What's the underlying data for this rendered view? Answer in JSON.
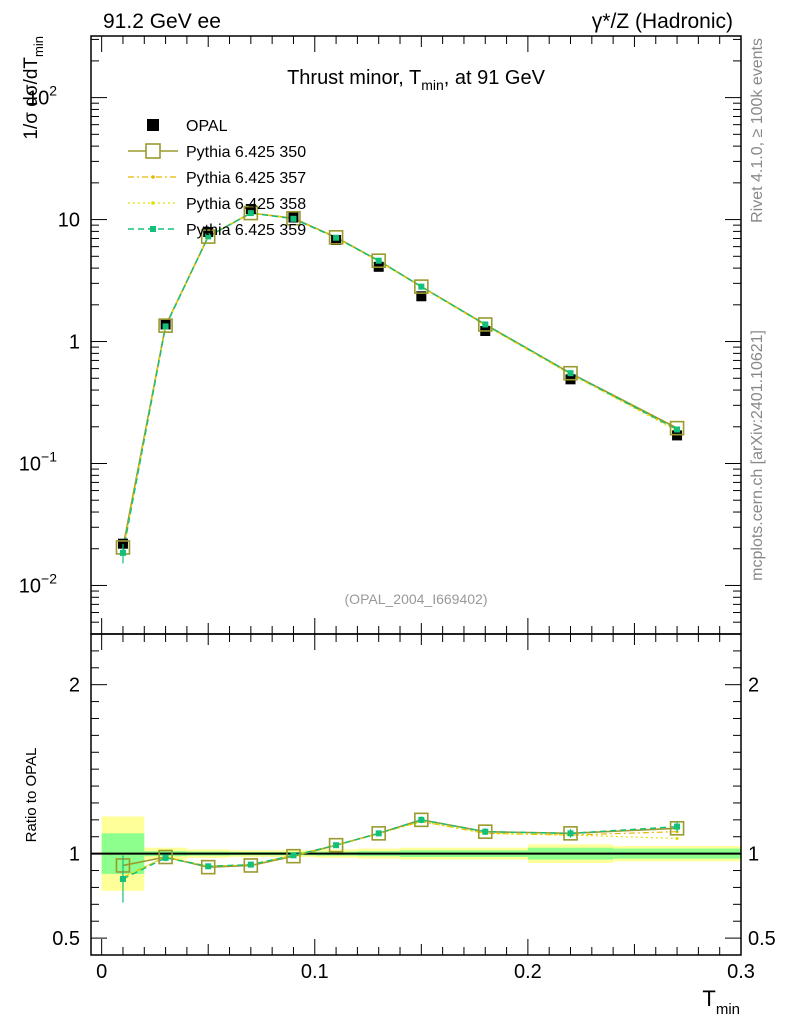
{
  "header": {
    "left": "91.2 GeV ee",
    "right": "γ*/Z (Hadronic)"
  },
  "side": {
    "rivet": "Rivet 4.1.0, ≥ 100k events",
    "mcplots": "mcplots.cern.ch [arXiv:2401.10621]"
  },
  "colors": {
    "opal": "#000000",
    "p350": "#9a9a2e",
    "p357": "#e8b800",
    "p358": "#e0e000",
    "p359": "#13c07a",
    "band_inner": "#8cff8c",
    "band_outer": "#ffff99"
  },
  "chart_data": [
    {
      "type": "scatter",
      "title": "Thrust minor, T",
      "title_sub": "min",
      "title_suffix": ", at 91 GeV",
      "ylabel": "1/σ  dσ/dT",
      "ylabel_sub": "min",
      "yscale": "log",
      "ylim": [
        0.004,
        320
      ],
      "xlim": [
        -0.005,
        0.3
      ],
      "ytick_major": [
        {
          "v": 0.01,
          "base": "10",
          "exp": "−2"
        },
        {
          "v": 0.1,
          "base": "10",
          "exp": "−1"
        },
        {
          "v": 1,
          "base": "1",
          "exp": ""
        },
        {
          "v": 10,
          "base": "10",
          "exp": ""
        },
        {
          "v": 100,
          "base": "10",
          "exp": "2"
        }
      ],
      "watermark": "(OPAL_2004_I669402)",
      "x": [
        0.01,
        0.03,
        0.05,
        0.07,
        0.09,
        0.11,
        0.13,
        0.15,
        0.18,
        0.22,
        0.27
      ],
      "xerr": [
        0.01,
        0.01,
        0.01,
        0.01,
        0.01,
        0.01,
        0.01,
        0.01,
        0.02,
        0.02,
        0.03
      ],
      "series": [
        {
          "name": "OPAL",
          "key": "opal",
          "values": [
            0.022,
            1.38,
            7.9,
            12.2,
            10.4,
            6.8,
            4.1,
            2.35,
            1.22,
            0.49,
            0.17
          ]
        },
        {
          "name": "Pythia 6.425 350",
          "key": "p350",
          "values": [
            0.0205,
            1.35,
            7.25,
            11.3,
            10.25,
            7.15,
            4.6,
            2.82,
            1.38,
            0.55,
            0.195
          ]
        },
        {
          "name": "Pythia 6.425 357",
          "key": "p357",
          "values": [
            0.019,
            1.34,
            7.3,
            11.35,
            10.2,
            7.1,
            4.55,
            2.8,
            1.36,
            0.54,
            0.19
          ]
        },
        {
          "name": "Pythia 6.425 358",
          "key": "p358",
          "values": [
            0.019,
            1.34,
            7.3,
            11.35,
            10.2,
            7.1,
            4.55,
            2.8,
            1.36,
            0.54,
            0.185
          ]
        },
        {
          "name": "Pythia 6.425 359",
          "key": "p359",
          "values": [
            0.0185,
            1.33,
            7.28,
            11.3,
            10.15,
            7.1,
            4.6,
            2.82,
            1.38,
            0.55,
            0.19
          ]
        }
      ]
    },
    {
      "type": "scatter",
      "ylabel": "Ratio to OPAL",
      "xlabel": "T",
      "xlabel_sub": "min",
      "ylim": [
        0.4,
        2.3
      ],
      "xlim": [
        -0.005,
        0.3
      ],
      "xticks": [
        0,
        0.1,
        0.2,
        0.3
      ],
      "xtick_labels": [
        "0",
        "0.1",
        "0.2",
        "0.3"
      ],
      "yticks": [
        0.5,
        1,
        2
      ],
      "ytick_labels": [
        "0.5",
        "1",
        "2"
      ],
      "band_inner": [
        0.12,
        0.015,
        0.012,
        0.01,
        0.01,
        0.012,
        0.015,
        0.02,
        0.02,
        0.035,
        0.03
      ],
      "band_outer": [
        0.22,
        0.035,
        0.025,
        0.02,
        0.02,
        0.025,
        0.03,
        0.035,
        0.035,
        0.055,
        0.045
      ],
      "series": [
        {
          "name": "Pythia 6.425 350",
          "key": "p350",
          "values": [
            0.93,
            0.98,
            0.92,
            0.93,
            0.985,
            1.05,
            1.12,
            1.2,
            1.13,
            1.12,
            1.15
          ]
        },
        {
          "name": "Pythia 6.425 357",
          "key": "p357",
          "values": [
            0.86,
            0.98,
            0.925,
            0.935,
            0.99,
            1.05,
            1.12,
            1.19,
            1.12,
            1.11,
            1.13
          ]
        },
        {
          "name": "Pythia 6.425 358",
          "key": "p358",
          "values": [
            0.86,
            0.98,
            0.925,
            0.935,
            0.99,
            1.05,
            1.12,
            1.19,
            1.12,
            1.11,
            1.09
          ]
        },
        {
          "name": "Pythia 6.425 359",
          "key": "p359",
          "values": [
            0.85,
            0.975,
            0.925,
            0.935,
            0.99,
            1.05,
            1.12,
            1.2,
            1.13,
            1.12,
            1.16
          ]
        }
      ],
      "yerr": [
        0.14,
        0.02,
        0.012,
        0.01,
        0.01,
        0.012,
        0.015,
        0.02,
        0.02,
        0.025,
        0.03
      ]
    }
  ]
}
